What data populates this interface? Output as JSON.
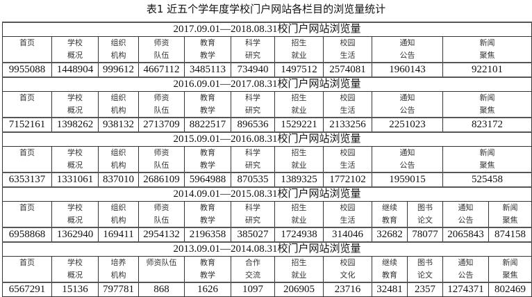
{
  "title": "表1 近五个学年度学校门户网站各栏目的浏览量统计",
  "blocks": [
    {
      "period": "2017.09.01—2018.08.31校门户网站浏览量",
      "labels": [
        [
          "首页",
          ""
        ],
        [
          "学校",
          "概况"
        ],
        [
          "组织",
          "机构"
        ],
        [
          "师资",
          "队伍"
        ],
        [
          "教育",
          "教学"
        ],
        [
          "科学",
          "研究"
        ],
        [
          "招生",
          "就业"
        ],
        [
          "校园",
          "生活"
        ],
        [
          "通知",
          "公告"
        ],
        [
          "新闻",
          "聚焦"
        ]
      ],
      "values": [
        "9955088",
        "1448904",
        "999612",
        "4667112",
        "3485113",
        "734940",
        "1497512",
        "2574081",
        "1960143",
        "922101"
      ]
    },
    {
      "period": "2016.09.01—2017.08.31校门户网站浏览量",
      "labels": [
        [
          "首页",
          ""
        ],
        [
          "学校",
          "概况"
        ],
        [
          "组织",
          "机构"
        ],
        [
          "师资",
          "队伍"
        ],
        [
          "教育",
          "教学"
        ],
        [
          "科学",
          "研究"
        ],
        [
          "招生",
          "就业"
        ],
        [
          "校园",
          "生活"
        ],
        [
          "通知",
          "公告"
        ],
        [
          "新闻",
          "聚焦"
        ]
      ],
      "values": [
        "7152161",
        "1398262",
        "938132",
        "2713709",
        "8822517",
        "896536",
        "1529221",
        "2133256",
        "2251023",
        "823172"
      ]
    },
    {
      "period": "2015.09.01—2016.08.31校门户网站浏览量",
      "labels": [
        [
          "首页",
          ""
        ],
        [
          "学校",
          "概况"
        ],
        [
          "组织",
          "机构"
        ],
        [
          "师资",
          "队伍"
        ],
        [
          "教育",
          "教学"
        ],
        [
          "科学",
          "研究"
        ],
        [
          "招生",
          "就业"
        ],
        [
          "校园",
          "生活"
        ],
        [
          "通知",
          "公告"
        ],
        [
          "新闻",
          "聚焦"
        ]
      ],
      "values": [
        "6353137",
        "1331061",
        "837010",
        "2686109",
        "5964988",
        "870535",
        "1389325",
        "1772102",
        "1959015",
        "525458"
      ]
    },
    {
      "period": "2014.09.01—2015.08.31校门户网站浏览量",
      "labels": [
        [
          "首页",
          ""
        ],
        [
          "学校",
          "概况"
        ],
        [
          "组织",
          "机构"
        ],
        [
          "师资",
          "队伍"
        ],
        [
          "教育",
          "教学"
        ],
        [
          "科学",
          "研究"
        ],
        [
          "招生",
          "就业"
        ],
        [
          "校园",
          "生活"
        ],
        [
          "继续",
          "教育"
        ],
        [
          "图书",
          "论文"
        ],
        [
          "通知",
          "公告"
        ],
        [
          "新闻",
          "聚焦"
        ]
      ],
      "values": [
        "6958868",
        "1362940",
        "169411",
        "2954132",
        "2196358",
        "385027",
        "1724938",
        "314046",
        "32682",
        "78077",
        "2065843",
        "874158"
      ]
    },
    {
      "period": "2013.09.01—2014.08.31校门户网站浏览量",
      "labels": [
        [
          "首页",
          ""
        ],
        [
          "学校",
          "概况"
        ],
        [
          "培养",
          "机构"
        ],
        [
          "师资队伍",
          ""
        ],
        [
          "教育",
          "教学"
        ],
        [
          "合作",
          "交流"
        ],
        [
          "招生",
          "就业"
        ],
        [
          "校园",
          "文化"
        ],
        [
          "继续",
          "教育"
        ],
        [
          "图书",
          "论文"
        ],
        [
          "通知",
          "公告"
        ],
        [
          "新闻",
          "聚焦"
        ]
      ],
      "values": [
        "6567291",
        "15136",
        "797781",
        "868",
        "1626",
        "1097",
        "206905",
        "23716",
        "32481",
        "2357",
        "1274371",
        "802469"
      ]
    }
  ]
}
